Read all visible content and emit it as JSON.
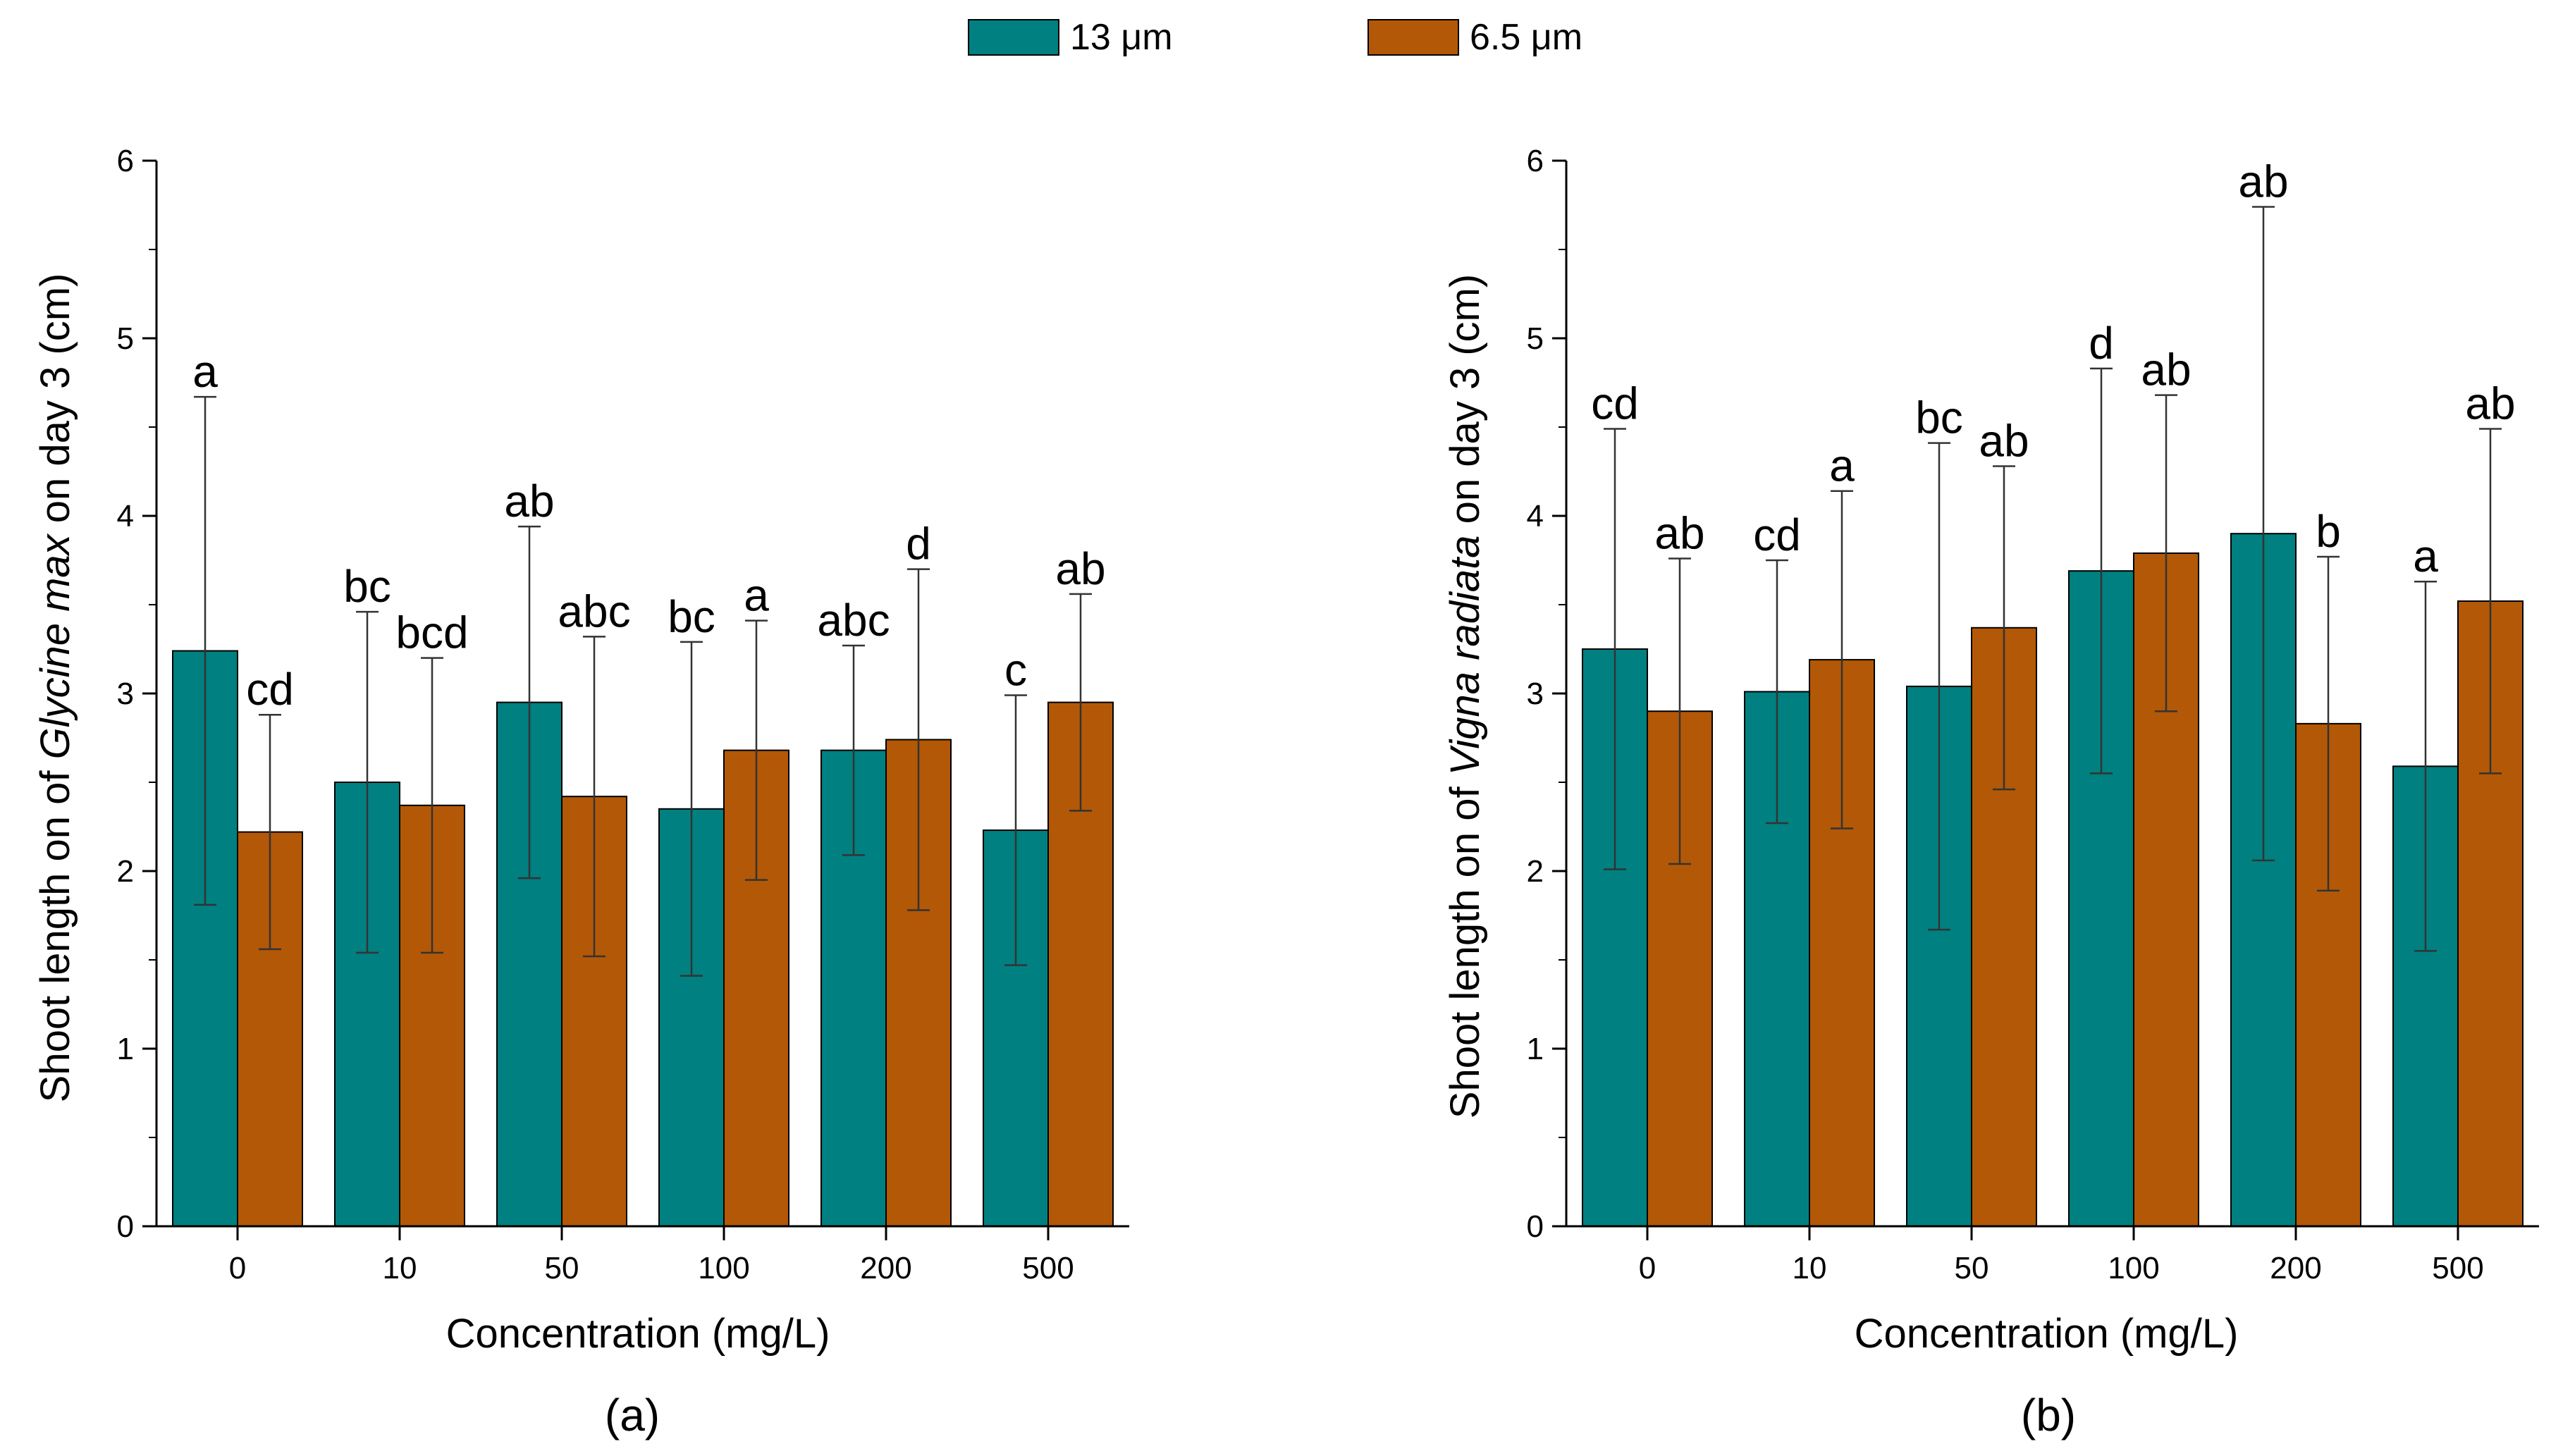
{
  "legend": {
    "items": [
      {
        "label": "13 μm",
        "color": "#008080"
      },
      {
        "label": "6.5 μm",
        "color": "#b35806"
      }
    ]
  },
  "chart_data": [
    {
      "type": "bar",
      "panel_label": "(a)",
      "xlabel": "Concentration (mg/L)",
      "ylabel": {
        "pre": "Shoot length on of ",
        "species": "Glycine max",
        "post": " on day 3 (cm)"
      },
      "ylim": [
        0,
        6
      ],
      "yticks": [
        "0",
        "1",
        "2",
        "3",
        "4",
        "5",
        "6"
      ],
      "categories": [
        "0",
        "10",
        "50",
        "100",
        "200",
        "500"
      ],
      "series": [
        {
          "name": "13 μm",
          "values": [
            3.24,
            2.5,
            2.95,
            2.35,
            2.68,
            2.23
          ],
          "errors": [
            1.43,
            0.96,
            0.99,
            0.94,
            0.59,
            0.76
          ],
          "labels": [
            "a",
            "bc",
            "ab",
            "bc",
            "abc",
            "c"
          ]
        },
        {
          "name": "6.5 μm",
          "values": [
            2.22,
            2.37,
            2.42,
            2.68,
            2.74,
            2.95
          ],
          "errors": [
            0.66,
            0.83,
            0.9,
            0.73,
            0.96,
            0.61
          ],
          "labels": [
            "cd",
            "bcd",
            "abc",
            "a",
            "d",
            "ab"
          ]
        }
      ]
    },
    {
      "type": "bar",
      "panel_label": "(b)",
      "xlabel": "Concentration (mg/L)",
      "ylabel": {
        "pre": "Shoot length on of ",
        "species": "Vigna radiata",
        "post": " on day 3 (cm)"
      },
      "ylim": [
        0,
        6
      ],
      "yticks": [
        "0",
        "1",
        "2",
        "3",
        "4",
        "5",
        "6"
      ],
      "categories": [
        "0",
        "10",
        "50",
        "100",
        "200",
        "500"
      ],
      "series": [
        {
          "name": "13 μm",
          "values": [
            3.25,
            3.01,
            3.04,
            3.69,
            3.9,
            2.59
          ],
          "errors": [
            1.24,
            0.74,
            1.37,
            1.14,
            1.84,
            1.04
          ],
          "labels": [
            "cd",
            "cd",
            "bc",
            "d",
            "ab",
            "a"
          ]
        },
        {
          "name": "6.5 μm",
          "values": [
            2.9,
            3.19,
            3.37,
            3.79,
            2.83,
            3.52
          ],
          "errors": [
            0.86,
            0.95,
            0.91,
            0.89,
            0.94,
            0.97
          ],
          "labels": [
            "ab",
            "a",
            "ab",
            "ab",
            "b",
            "ab"
          ]
        }
      ]
    }
  ]
}
